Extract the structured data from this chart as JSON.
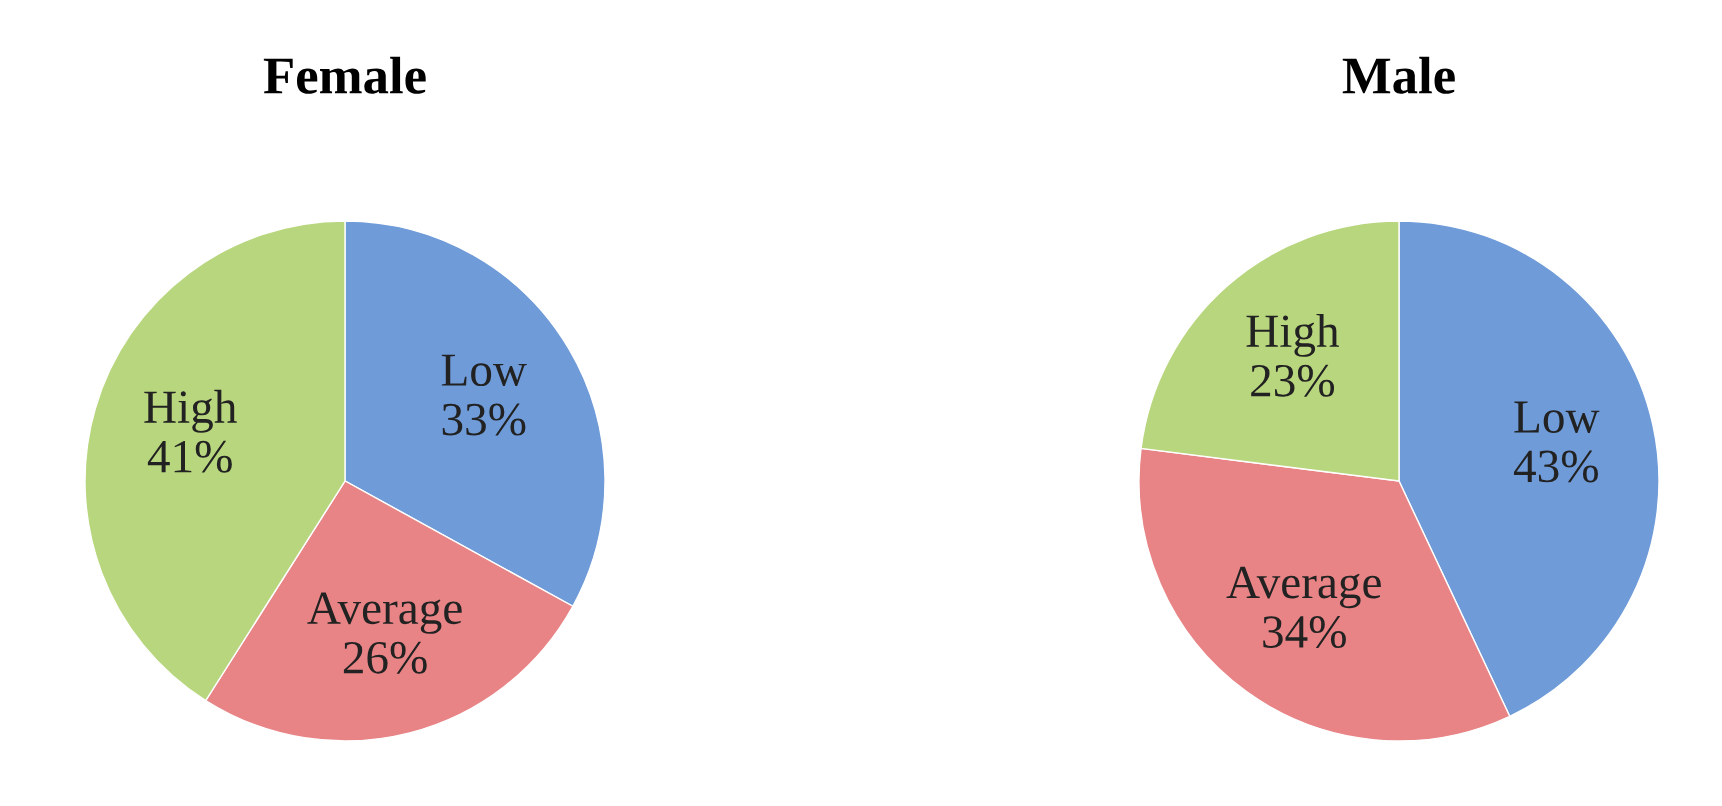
{
  "chart_data": [
    {
      "type": "pie",
      "title": "Female",
      "categories": [
        "Low",
        "Average",
        "High"
      ],
      "values": [
        33,
        26,
        41
      ],
      "value_labels": [
        "33%",
        "26%",
        "41%"
      ],
      "colors": [
        "#6f9bd8",
        "#e88486",
        "#b8d67e"
      ],
      "legend": false
    },
    {
      "type": "pie",
      "title": "Male",
      "categories": [
        "Low",
        "Average",
        "High"
      ],
      "values": [
        43,
        34,
        23
      ],
      "value_labels": [
        "43%",
        "34%",
        "23%"
      ],
      "colors": [
        "#6f9bd8",
        "#e88486",
        "#b8d67e"
      ],
      "legend": false
    }
  ]
}
